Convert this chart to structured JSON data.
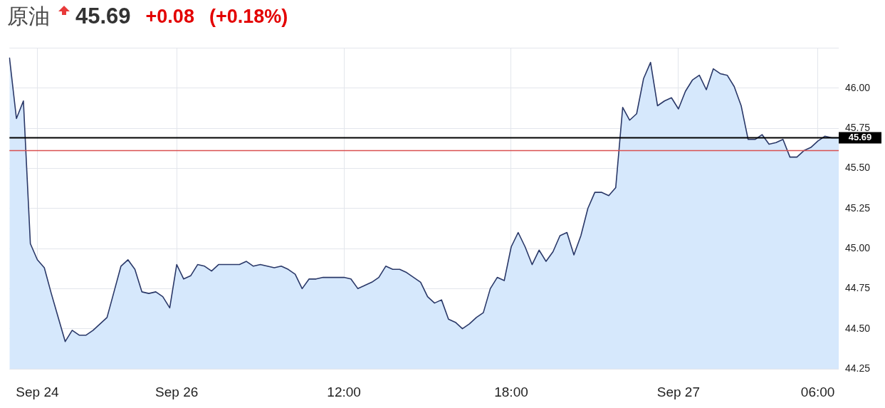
{
  "chart_data": {
    "type": "area",
    "title": "原油",
    "annotations": [
      "45.69",
      "+0.08",
      "(+0.18%)"
    ],
    "categories": [
      null,
      null,
      null,
      null,
      "Sep 24",
      null,
      null,
      null,
      null,
      null,
      null,
      null,
      null,
      null,
      null,
      null,
      null,
      null,
      null,
      null,
      null,
      null,
      null,
      null,
      "Sep 26",
      null,
      null,
      null,
      null,
      null,
      null,
      null,
      null,
      null,
      null,
      null,
      null,
      null,
      null,
      null,
      null,
      null,
      null,
      null,
      null,
      null,
      null,
      null,
      "12:00",
      null,
      null,
      null,
      null,
      null,
      null,
      null,
      null,
      null,
      null,
      null,
      null,
      null,
      null,
      null,
      null,
      null,
      null,
      null,
      null,
      null,
      null,
      null,
      "18:00",
      null,
      null,
      null,
      null,
      null,
      null,
      null,
      null,
      null,
      null,
      null,
      null,
      null,
      null,
      null,
      null,
      null,
      null,
      null,
      null,
      null,
      null,
      null,
      "Sep 27",
      null,
      null,
      null,
      null,
      null,
      null,
      null,
      null,
      null,
      null,
      null,
      null,
      null,
      null,
      null,
      null,
      null,
      null,
      null,
      "06:00",
      null,
      null,
      null
    ],
    "values": [
      46.19,
      45.81,
      45.92,
      45.03,
      44.93,
      44.88,
      44.72,
      44.57,
      44.42,
      44.49,
      44.46,
      44.46,
      44.49,
      44.53,
      44.57,
      44.73,
      44.89,
      44.93,
      44.87,
      44.73,
      44.72,
      44.73,
      44.7,
      44.63,
      44.9,
      44.81,
      44.83,
      44.9,
      44.89,
      44.86,
      44.9,
      44.9,
      44.9,
      44.9,
      44.92,
      44.89,
      44.9,
      44.89,
      44.88,
      44.89,
      44.87,
      44.84,
      44.75,
      44.81,
      44.81,
      44.82,
      44.82,
      44.82,
      44.82,
      44.81,
      44.75,
      44.77,
      44.79,
      44.82,
      44.89,
      44.87,
      44.87,
      44.85,
      44.82,
      44.79,
      44.7,
      44.66,
      44.68,
      44.56,
      44.54,
      44.5,
      44.53,
      44.57,
      44.6,
      44.75,
      44.82,
      44.8,
      45.01,
      45.1,
      45.01,
      44.9,
      44.99,
      44.92,
      44.98,
      45.08,
      45.1,
      44.96,
      45.08,
      45.25,
      45.35,
      45.35,
      45.33,
      45.38,
      45.88,
      45.8,
      45.84,
      46.06,
      46.16,
      45.89,
      45.92,
      45.94,
      45.87,
      45.98,
      46.05,
      46.08,
      45.99,
      46.12,
      46.09,
      46.08,
      46.01,
      45.89,
      45.68,
      45.68,
      45.71,
      45.65,
      45.66,
      45.68,
      45.57,
      45.57,
      45.61,
      45.63,
      45.67,
      45.7,
      45.69,
      45.69
    ],
    "color": "#2a3868",
    "ylim": [
      44.25,
      46.25
    ],
    "yticks": [
      {
        "value": 44.25,
        "label": "44.25"
      },
      {
        "value": 44.5,
        "label": "44.50"
      },
      {
        "value": 44.75,
        "label": "44.75"
      },
      {
        "value": 45,
        "label": "45.00"
      },
      {
        "value": 45.25,
        "label": "45.25"
      },
      {
        "value": 45.5,
        "label": "45.50"
      },
      {
        "value": 45.75,
        "label": "45.75"
      },
      {
        "value": 46,
        "label": "46.00"
      },
      {
        "value": 46.25,
        "label": null
      }
    ],
    "ref_lines": [
      {
        "axis": "y",
        "value": 45.69,
        "label": "45.69",
        "color": "#000000"
      },
      {
        "axis": "y",
        "value": 45.61,
        "color": "#d95050"
      }
    ],
    "grid": true,
    "marker": "none"
  }
}
